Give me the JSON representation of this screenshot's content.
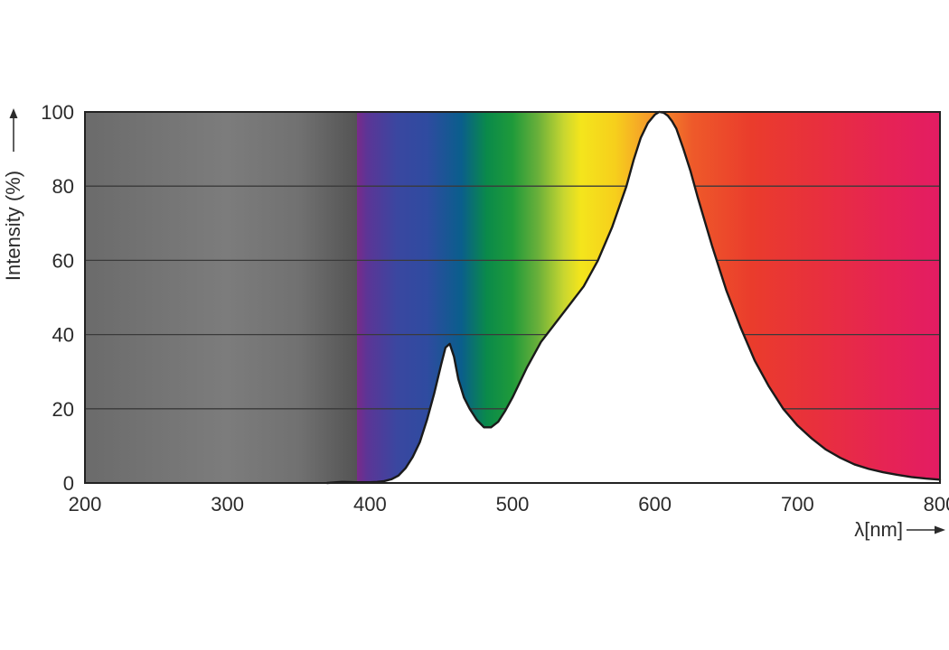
{
  "chart_data": {
    "type": "area",
    "title": "",
    "xlabel": "λ[nm]",
    "ylabel": "Intensity (%)",
    "xlim": [
      200,
      800
    ],
    "ylim": [
      0,
      100
    ],
    "xticks": [
      200,
      300,
      400,
      500,
      600,
      700,
      800
    ],
    "yticks": [
      0,
      20,
      40,
      60,
      80,
      100
    ],
    "grid": "horizontal",
    "background": "visible-spectrum gradient (grey below 370 nm)",
    "series": [
      {
        "x": [
          370,
          380,
          390,
          400,
          405,
          410,
          415,
          420,
          425,
          430,
          435,
          440,
          445,
          450,
          453,
          456,
          459,
          462,
          466,
          470,
          475,
          480,
          485,
          490,
          495,
          500,
          510,
          520,
          530,
          540,
          550,
          560,
          570,
          580,
          585,
          590,
          595,
          600,
          603,
          606,
          609,
          612,
          615,
          620,
          625,
          630,
          640,
          650,
          660,
          670,
          680,
          690,
          700,
          710,
          720,
          730,
          740,
          750,
          760,
          770,
          780,
          790,
          800
        ],
        "y": [
          0,
          0.3,
          0.2,
          0.2,
          0.3,
          0.5,
          1,
          2,
          4,
          7,
          11,
          17,
          24,
          32,
          36.5,
          37.5,
          34,
          28,
          23,
          20,
          17,
          15,
          15,
          16.5,
          19.5,
          23,
          31,
          38,
          43,
          48,
          53,
          60,
          69,
          80,
          87,
          93,
          97,
          99.3,
          100,
          99.8,
          99,
          97.5,
          95.5,
          90,
          84,
          77,
          64,
          52,
          42,
          33,
          26,
          20,
          15.5,
          12,
          9,
          6.8,
          5,
          3.8,
          2.9,
          2.2,
          1.6,
          1.2,
          0.9
        ]
      }
    ],
    "colors": {
      "curve": "#1a1a1a",
      "grid": "#3a3a3a",
      "frame": "#222222",
      "underCurve": "#ffffff"
    }
  }
}
